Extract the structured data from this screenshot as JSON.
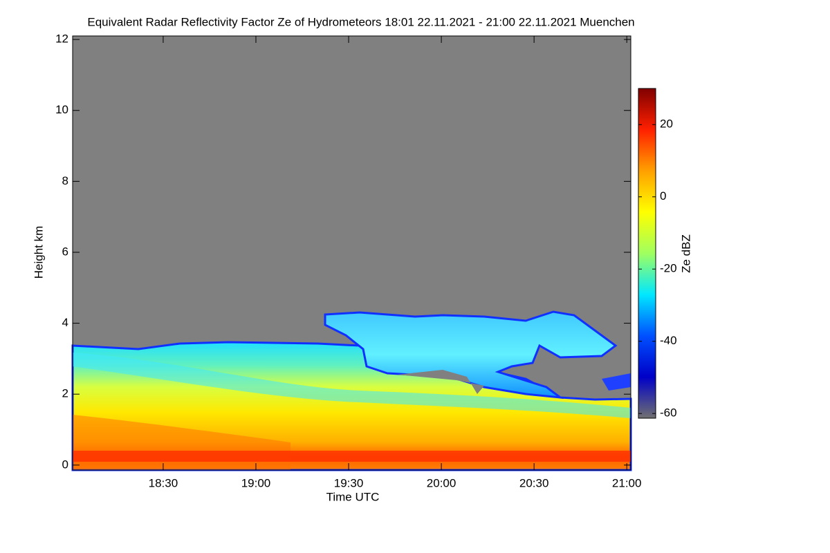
{
  "chart_data": {
    "type": "heatmap",
    "title": "Equivalent Radar Reflectivity Factor Ze of Hydrometeors   18:01 22.11.2021 - 21:00 22.11.2021 Muenchen",
    "x_label": "Time UTC",
    "y_label": "Height km",
    "colorbar_label": "Ze dBZ",
    "xlim": [
      0.7,
      181.3
    ],
    "xticks": [
      {
        "value": 30,
        "label": "18:30"
      },
      {
        "value": 60,
        "label": "19:00"
      },
      {
        "value": 90,
        "label": "19:30"
      },
      {
        "value": 120,
        "label": "20:00"
      },
      {
        "value": 150,
        "label": "20:30"
      },
      {
        "value": 180,
        "label": "21:00"
      }
    ],
    "ylim": [
      -0.14,
      12.1
    ],
    "yticks": [
      0,
      2,
      4,
      6,
      8,
      10,
      12
    ],
    "clim": [
      -61.3,
      30
    ],
    "cticks": [
      20,
      0,
      -20,
      -40,
      -60
    ],
    "colormap": [
      "#707070",
      "#0000c8",
      "#0050ff",
      "#00e8ff",
      "#a0ff60",
      "#ffff00",
      "#ffa000",
      "#ff2000",
      "#800000"
    ]
  }
}
